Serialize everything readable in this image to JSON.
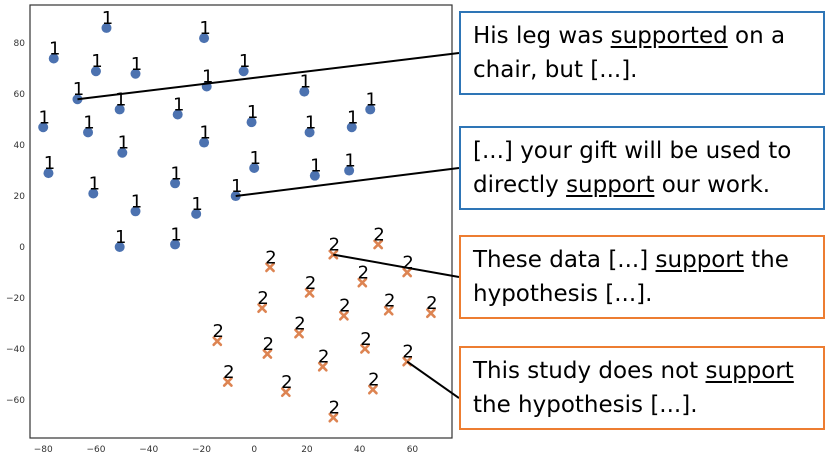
{
  "chart_data": {
    "type": "scatter",
    "title": "",
    "xlabel": "",
    "ylabel": "",
    "xlim": [
      -85,
      75
    ],
    "ylim": [
      -75,
      95
    ],
    "xticks": [
      -80,
      -60,
      -40,
      -20,
      0,
      20,
      40,
      60
    ],
    "yticks": [
      80,
      60,
      40,
      20,
      0,
      -20,
      -40,
      -60
    ],
    "grid": false,
    "series": [
      {
        "point_label": "1",
        "marker": "circle",
        "color": "#4C72B0",
        "points": [
          [
            -56,
            86
          ],
          [
            -19,
            82
          ],
          [
            -76,
            74
          ],
          [
            -60,
            69
          ],
          [
            -45,
            68
          ],
          [
            -4,
            69
          ],
          [
            -18,
            63
          ],
          [
            -67,
            58
          ],
          [
            19,
            61
          ],
          [
            -51,
            54
          ],
          [
            -29,
            52
          ],
          [
            -80,
            47
          ],
          [
            -63,
            45
          ],
          [
            -1,
            49
          ],
          [
            21,
            45
          ],
          [
            37,
            47
          ],
          [
            44,
            54
          ],
          [
            -19,
            41
          ],
          [
            -50,
            37
          ],
          [
            -78,
            29
          ],
          [
            0,
            31
          ],
          [
            23,
            28
          ],
          [
            36,
            30
          ],
          [
            -61,
            21
          ],
          [
            -30,
            25
          ],
          [
            -7,
            20
          ],
          [
            -45,
            14
          ],
          [
            -22,
            13
          ],
          [
            -51,
            0
          ],
          [
            -30,
            1
          ]
        ]
      },
      {
        "point_label": "2",
        "marker": "x",
        "color": "#DD8452",
        "points": [
          [
            30,
            -3
          ],
          [
            47,
            1
          ],
          [
            6,
            -8
          ],
          [
            58,
            -10
          ],
          [
            41,
            -14
          ],
          [
            21,
            -18
          ],
          [
            3,
            -24
          ],
          [
            67,
            -26
          ],
          [
            34,
            -27
          ],
          [
            51,
            -25
          ],
          [
            17,
            -34
          ],
          [
            -14,
            -37
          ],
          [
            5,
            -42
          ],
          [
            42,
            -40
          ],
          [
            26,
            -47
          ],
          [
            58,
            -45
          ],
          [
            -10,
            -53
          ],
          [
            12,
            -57
          ],
          [
            45,
            -56
          ],
          [
            30,
            -67
          ]
        ]
      }
    ],
    "callouts": [
      {
        "style": "blue",
        "points_to": [
          -67,
          58
        ],
        "lines": [
          [
            "His leg was ",
            "supported",
            " on a"
          ],
          [
            "chair, but [...]."
          ]
        ]
      },
      {
        "style": "blue",
        "points_to": [
          -7,
          20
        ],
        "lines": [
          [
            "[...] your gift will be used to"
          ],
          [
            "directly ",
            "support",
            " our work."
          ]
        ]
      },
      {
        "style": "orange",
        "points_to": [
          30,
          -3
        ],
        "lines": [
          [
            "These data [...] ",
            "support",
            " the"
          ],
          [
            "hypothesis [...]."
          ]
        ]
      },
      {
        "style": "orange",
        "points_to": [
          58,
          -45
        ],
        "lines": [
          [
            "This study does not ",
            "support"
          ],
          [
            "the hypothesis [...]."
          ]
        ]
      }
    ]
  },
  "colors": {
    "blue_series": "#4C72B0",
    "orange_series": "#DD8452",
    "blue_border": "#2E75B6",
    "orange_border": "#ED7D31"
  }
}
